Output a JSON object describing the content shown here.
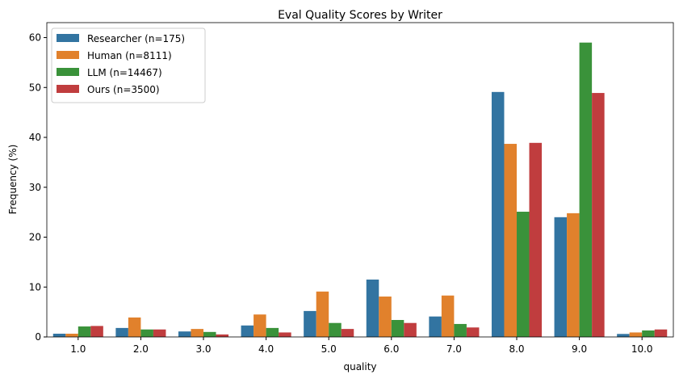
{
  "chart_data": {
    "type": "bar",
    "title": "Eval Quality Scores by Writer",
    "xlabel": "quality",
    "ylabel": "Frequency (%)",
    "ylim": [
      0,
      63
    ],
    "yticks": [
      0,
      10,
      20,
      30,
      40,
      50,
      60
    ],
    "categories": [
      "1.0",
      "2.0",
      "3.0",
      "4.0",
      "5.0",
      "6.0",
      "7.0",
      "8.0",
      "9.0",
      "10.0"
    ],
    "legend_position": "top-left",
    "grid": false,
    "series": [
      {
        "name": "Researcher (n=175)",
        "color": "#3274a1",
        "values": [
          0.65,
          1.8,
          1.1,
          2.3,
          5.2,
          11.5,
          4.1,
          49.1,
          24.0,
          0.6
        ]
      },
      {
        "name": "Human (n=8111)",
        "color": "#e1812c",
        "values": [
          0.65,
          3.9,
          1.6,
          4.5,
          9.1,
          8.1,
          8.3,
          38.7,
          24.8,
          0.9
        ]
      },
      {
        "name": "LLM (n=14467)",
        "color": "#3a923a",
        "values": [
          2.1,
          1.5,
          1.0,
          1.8,
          2.8,
          3.4,
          2.6,
          25.1,
          59.0,
          1.3
        ]
      },
      {
        "name": "Ours (n=3500)",
        "color": "#c03d3e",
        "values": [
          2.2,
          1.5,
          0.5,
          0.9,
          1.6,
          2.8,
          1.9,
          38.9,
          48.9,
          1.5
        ]
      }
    ]
  }
}
